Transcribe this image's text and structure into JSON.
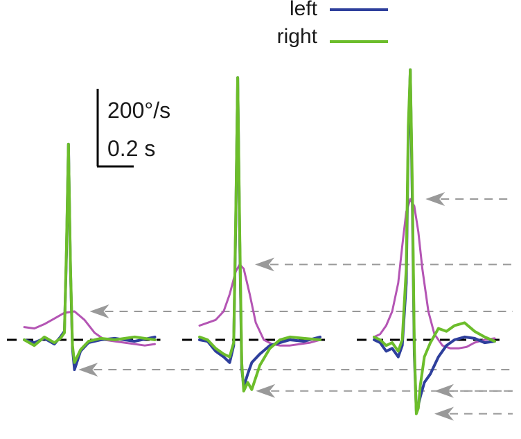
{
  "chart_data": {
    "type": "line",
    "title": "",
    "legend": {
      "placement": "top-right",
      "entries": [
        {
          "label": "left",
          "color": "#2e3f9c"
        },
        {
          "label": "right",
          "color": "#6cbd2b"
        }
      ]
    },
    "scale_bar": {
      "velocity_label": "200°/s",
      "time_label": "0.2 s",
      "velocity_value": 200,
      "velocity_unit": "°/s",
      "time_value": 0.2,
      "time_unit": "s"
    },
    "colors": {
      "left_eye": "#2e3f9c",
      "right_eye": "#6cbd2b",
      "stimulus": "#b455b4",
      "baseline": "#000000",
      "marker": "#999999"
    },
    "axes": {
      "grid": false,
      "x_unit": "s",
      "y_unit": "°/s"
    },
    "panels": [
      {
        "name": "panel-1",
        "stimulus_peak": 100,
        "eye_peak": 688,
        "eye_trough": -105,
        "marker_levels": [
          100,
          -105
        ],
        "series": [
          {
            "name": "left",
            "x": [
              0.0,
              0.05,
              0.1,
              0.15,
              0.18,
              0.2,
              0.21,
              0.22,
              0.23,
              0.24,
              0.25,
              0.28,
              0.32,
              0.38,
              0.45,
              0.55,
              0.65
            ],
            "y": [
              0,
              -10,
              5,
              -15,
              10,
              30,
              300,
              688,
              250,
              -30,
              -105,
              -40,
              -10,
              0,
              5,
              -5,
              10
            ]
          },
          {
            "name": "right",
            "x": [
              0.0,
              0.05,
              0.1,
              0.15,
              0.18,
              0.2,
              0.21,
              0.22,
              0.23,
              0.24,
              0.25,
              0.28,
              0.32,
              0.38,
              0.45,
              0.55,
              0.65
            ],
            "y": [
              0,
              -20,
              10,
              -10,
              5,
              25,
              320,
              688,
              260,
              -20,
              -80,
              -35,
              -5,
              5,
              0,
              10,
              0
            ]
          },
          {
            "name": "stimulus",
            "x": [
              0.0,
              0.05,
              0.1,
              0.15,
              0.2,
              0.25,
              0.3,
              0.35,
              0.4,
              0.45,
              0.5,
              0.55,
              0.6,
              0.65
            ],
            "y": [
              45,
              40,
              55,
              75,
              95,
              100,
              70,
              25,
              0,
              -5,
              -10,
              -15,
              -20,
              -15
            ]
          }
        ]
      },
      {
        "name": "panel-2",
        "stimulus_peak": 265,
        "eye_peak": 922,
        "eye_trough": -180,
        "marker_levels": [
          265,
          -180
        ],
        "series": [
          {
            "name": "left",
            "x": [
              0.0,
              0.04,
              0.08,
              0.12,
              0.15,
              0.17,
              0.18,
              0.19,
              0.2,
              0.21,
              0.22,
              0.24,
              0.26,
              0.3,
              0.35,
              0.4,
              0.45,
              0.52,
              0.6
            ],
            "y": [
              0,
              -5,
              -40,
              -60,
              -80,
              -20,
              400,
              922,
              350,
              -100,
              -165,
              -120,
              -80,
              -50,
              -20,
              -10,
              0,
              -5,
              10
            ]
          },
          {
            "name": "right",
            "x": [
              0.0,
              0.04,
              0.08,
              0.12,
              0.15,
              0.17,
              0.18,
              0.19,
              0.2,
              0.21,
              0.22,
              0.24,
              0.26,
              0.3,
              0.35,
              0.4,
              0.45,
              0.52,
              0.6
            ],
            "y": [
              10,
              0,
              -30,
              -50,
              -60,
              -10,
              420,
              922,
              380,
              -80,
              -180,
              -150,
              -175,
              -90,
              -30,
              0,
              10,
              5,
              0
            ]
          },
          {
            "name": "stimulus",
            "x": [
              0.0,
              0.04,
              0.08,
              0.12,
              0.15,
              0.18,
              0.2,
              0.22,
              0.25,
              0.28,
              0.32,
              0.36,
              0.4,
              0.45,
              0.5,
              0.55,
              0.6
            ],
            "y": [
              50,
              60,
              70,
              100,
              160,
              240,
              265,
              250,
              160,
              60,
              0,
              -15,
              -20,
              -20,
              -15,
              -10,
              0
            ]
          }
        ]
      },
      {
        "name": "panel-3",
        "stimulus_peak": 495,
        "eye_peak": 950,
        "eye_trough": -260,
        "marker_levels": [
          495,
          -180,
          -260
        ],
        "series": [
          {
            "name": "left",
            "x": [
              0.0,
              0.03,
              0.06,
              0.09,
              0.12,
              0.14,
              0.16,
              0.17,
              0.18,
              0.19,
              0.2,
              0.21,
              0.22,
              0.23,
              0.25,
              0.28,
              0.32,
              0.36,
              0.4,
              0.45,
              0.5,
              0.55,
              0.6
            ],
            "y": [
              0,
              -10,
              -40,
              -30,
              -60,
              -20,
              200,
              700,
              950,
              500,
              -50,
              -250,
              -230,
              -200,
              -150,
              -120,
              -60,
              -20,
              0,
              10,
              5,
              -10,
              -5
            ]
          },
          {
            "name": "right",
            "x": [
              0.0,
              0.03,
              0.06,
              0.09,
              0.12,
              0.14,
              0.16,
              0.17,
              0.18,
              0.19,
              0.2,
              0.21,
              0.22,
              0.23,
              0.25,
              0.28,
              0.32,
              0.36,
              0.4,
              0.45,
              0.5,
              0.55,
              0.6
            ],
            "y": [
              10,
              0,
              -20,
              -10,
              -40,
              0,
              250,
              750,
              950,
              550,
              -20,
              -260,
              -240,
              -160,
              -60,
              -10,
              40,
              30,
              50,
              60,
              30,
              10,
              -5
            ]
          },
          {
            "name": "stimulus",
            "x": [
              0.0,
              0.03,
              0.06,
              0.09,
              0.12,
              0.14,
              0.16,
              0.18,
              0.2,
              0.22,
              0.24,
              0.27,
              0.3,
              0.34,
              0.38,
              0.42,
              0.46,
              0.5,
              0.55,
              0.6
            ],
            "y": [
              10,
              20,
              50,
              100,
              200,
              330,
              450,
              495,
              470,
              380,
              250,
              100,
              20,
              -20,
              -30,
              -30,
              -25,
              -10,
              0,
              5
            ]
          }
        ]
      }
    ]
  }
}
